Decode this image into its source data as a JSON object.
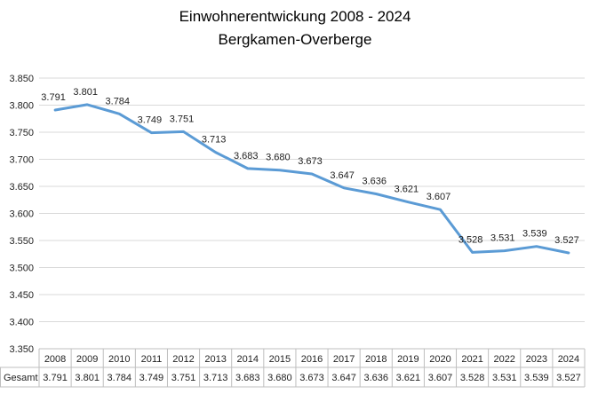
{
  "chart_data": {
    "type": "line",
    "title": "Einwohnerentwickung 2008 - 2024",
    "subtitle": "Bergkamen-Overberge",
    "categories": [
      "2008",
      "2009",
      "2010",
      "2011",
      "2012",
      "2013",
      "2014",
      "2015",
      "2016",
      "2017",
      "2018",
      "2019",
      "2020",
      "2021",
      "2022",
      "2023",
      "2024"
    ],
    "series": [
      {
        "name": "Gesamt",
        "values": [
          3791,
          3801,
          3784,
          3749,
          3751,
          3713,
          3683,
          3680,
          3673,
          3647,
          3636,
          3621,
          3607,
          3528,
          3531,
          3539,
          3527
        ]
      }
    ],
    "data_labels": [
      "3.791",
      "3.801",
      "3.784",
      "3.749",
      "3.751",
      "3.713",
      "3.683",
      "3.680",
      "3.673",
      "3.647",
      "3.636",
      "3.621",
      "3.607",
      "3.528",
      "3.531",
      "3.539",
      "3.527"
    ],
    "y_ticks": [
      3350,
      3400,
      3450,
      3500,
      3550,
      3600,
      3650,
      3700,
      3750,
      3800,
      3850
    ],
    "y_tick_labels": [
      "3.350",
      "3.400",
      "3.450",
      "3.500",
      "3.550",
      "3.600",
      "3.650",
      "3.700",
      "3.750",
      "3.800",
      "3.850"
    ],
    "ylim": [
      3350,
      3850
    ],
    "grid": true,
    "legend": "data table below chart",
    "line_color": "#5b9bd5",
    "grid_color": "#d9d9d9"
  }
}
